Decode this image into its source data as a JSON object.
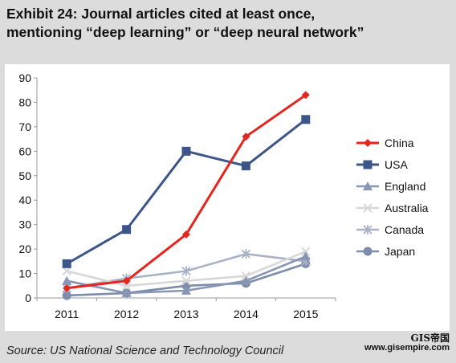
{
  "header": {
    "title_line1": "Exhibit 24: Journal articles cited at least once,",
    "title_line2": "mentioning “deep learning” or “deep neural network”"
  },
  "footer": {
    "source": "Source: US National Science and Technology Council"
  },
  "watermark": {
    "logo": "GIS帝国",
    "url": "www.gisempire.com"
  },
  "chart_data": {
    "type": "line",
    "title": "Exhibit 24: Journal articles cited at least once, mentioning “deep learning” or “deep neural network”",
    "categories": [
      "2011",
      "2012",
      "2013",
      "2014",
      "2015"
    ],
    "ylim": [
      0,
      90
    ],
    "yticks": [
      0,
      10,
      20,
      30,
      40,
      50,
      60,
      70,
      80,
      90
    ],
    "grid": false,
    "legend_position": "right",
    "series": [
      {
        "name": "China",
        "values": [
          4,
          7,
          26,
          66,
          83
        ],
        "color": "#e4261f",
        "marker": "diamond"
      },
      {
        "name": "USA",
        "values": [
          14,
          28,
          60,
          54,
          73
        ],
        "color": "#3d5589",
        "marker": "square"
      },
      {
        "name": "England",
        "values": [
          7,
          2,
          3,
          7,
          17
        ],
        "color": "#8896b4",
        "marker": "triangle"
      },
      {
        "name": "Australia",
        "values": [
          11,
          5,
          7,
          9,
          19
        ],
        "color": "#d8d8d8",
        "marker": "x"
      },
      {
        "name": "Canada",
        "values": [
          4,
          8,
          11,
          18,
          15
        ],
        "color": "#a9b1c6",
        "marker": "star"
      },
      {
        "name": "Japan",
        "values": [
          1,
          2,
          5,
          6,
          14
        ],
        "color": "#7d8cab",
        "marker": "circle"
      }
    ]
  }
}
